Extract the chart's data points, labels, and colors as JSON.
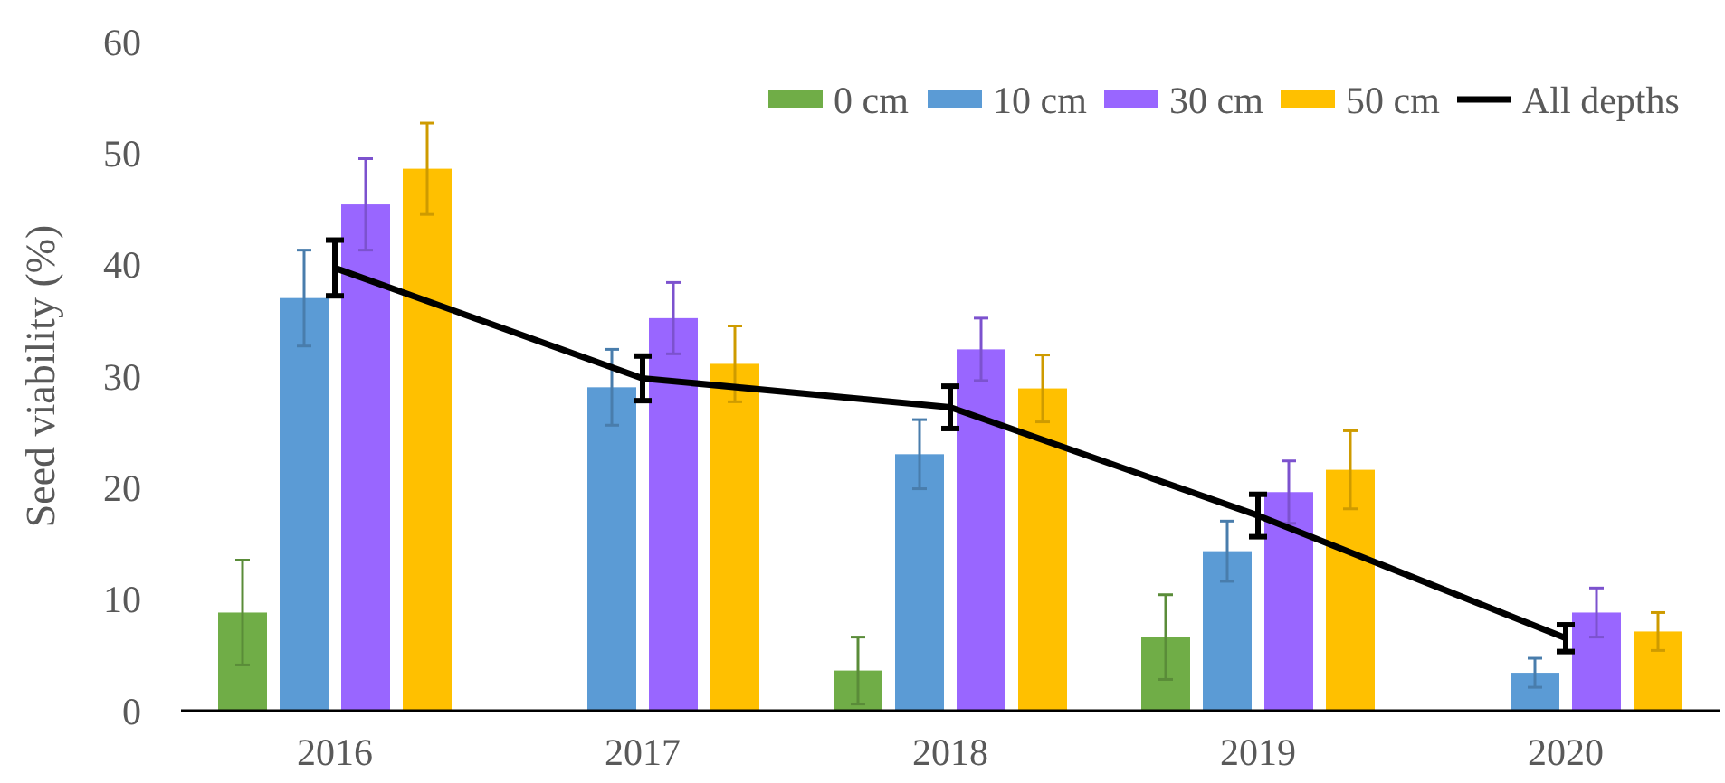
{
  "chart_data": {
    "type": "bar",
    "ylabel": "Seed viability (%)",
    "categories": [
      "2016",
      "2017",
      "2018",
      "2019",
      "2020"
    ],
    "series": [
      {
        "name": "0 cm",
        "color": "#70ad47",
        "values": [
          8.8,
          null,
          3.6,
          6.6,
          null
        ],
        "errors": [
          4.7,
          null,
          3.0,
          3.8,
          null
        ]
      },
      {
        "name": "10 cm",
        "color": "#5b9bd5",
        "values": [
          37.0,
          29.0,
          23.0,
          14.3,
          3.4
        ],
        "errors": [
          4.3,
          3.4,
          3.1,
          2.7,
          1.3
        ]
      },
      {
        "name": "30 cm",
        "color": "#9966ff",
        "values": [
          45.4,
          35.2,
          32.4,
          19.6,
          8.8
        ],
        "errors": [
          4.1,
          3.2,
          2.8,
          2.8,
          2.2
        ]
      },
      {
        "name": "50 cm",
        "color": "#ffc000",
        "values": [
          48.6,
          31.1,
          28.9,
          21.6,
          7.1
        ],
        "errors": [
          4.1,
          3.4,
          3.0,
          3.5,
          1.7
        ]
      },
      {
        "name": "All depths",
        "type": "line",
        "color": "#000000",
        "values": [
          39.7,
          29.8,
          27.2,
          17.5,
          6.5
        ],
        "errors": [
          2.5,
          2.0,
          1.9,
          1.9,
          1.2
        ]
      }
    ],
    "ylim": [
      0,
      60
    ],
    "yticks": [
      0,
      10,
      20,
      30,
      40,
      50,
      60
    ],
    "grid": false,
    "legend": "top right",
    "marker": "none",
    "line_style": "solid"
  }
}
